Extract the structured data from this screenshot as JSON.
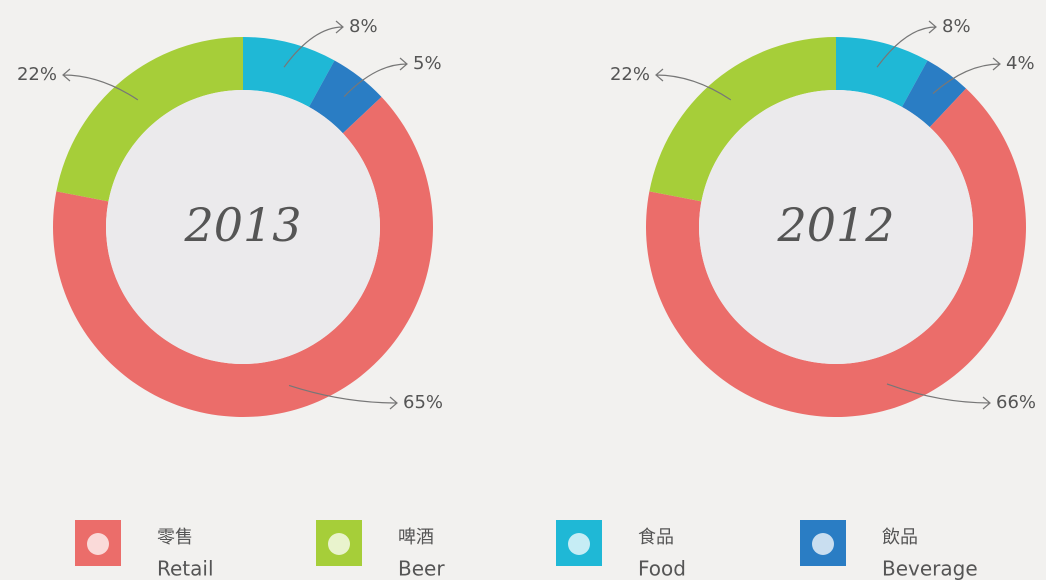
{
  "chart_data": [
    {
      "type": "pie",
      "title": "2013",
      "values": [
        65,
        22,
        8,
        5
      ],
      "value_labels": [
        "65%",
        "22%",
        "8%",
        "5%"
      ]
    },
    {
      "type": "pie",
      "title": "2012",
      "values": [
        66,
        22,
        8,
        4
      ],
      "value_labels": [
        "66%",
        "22%",
        "8%",
        "4%"
      ]
    }
  ],
  "legend": [
    {
      "zh": "零售",
      "en": "Retail",
      "color": "#eb6d6a"
    },
    {
      "zh": "啤酒",
      "en": "Beer",
      "color": "#a6ce39"
    },
    {
      "zh": "食品",
      "en": "Food",
      "color": "#1fb8d6"
    },
    {
      "zh": "飲品",
      "en": "Beverage",
      "color": "#2a7dc4"
    }
  ]
}
